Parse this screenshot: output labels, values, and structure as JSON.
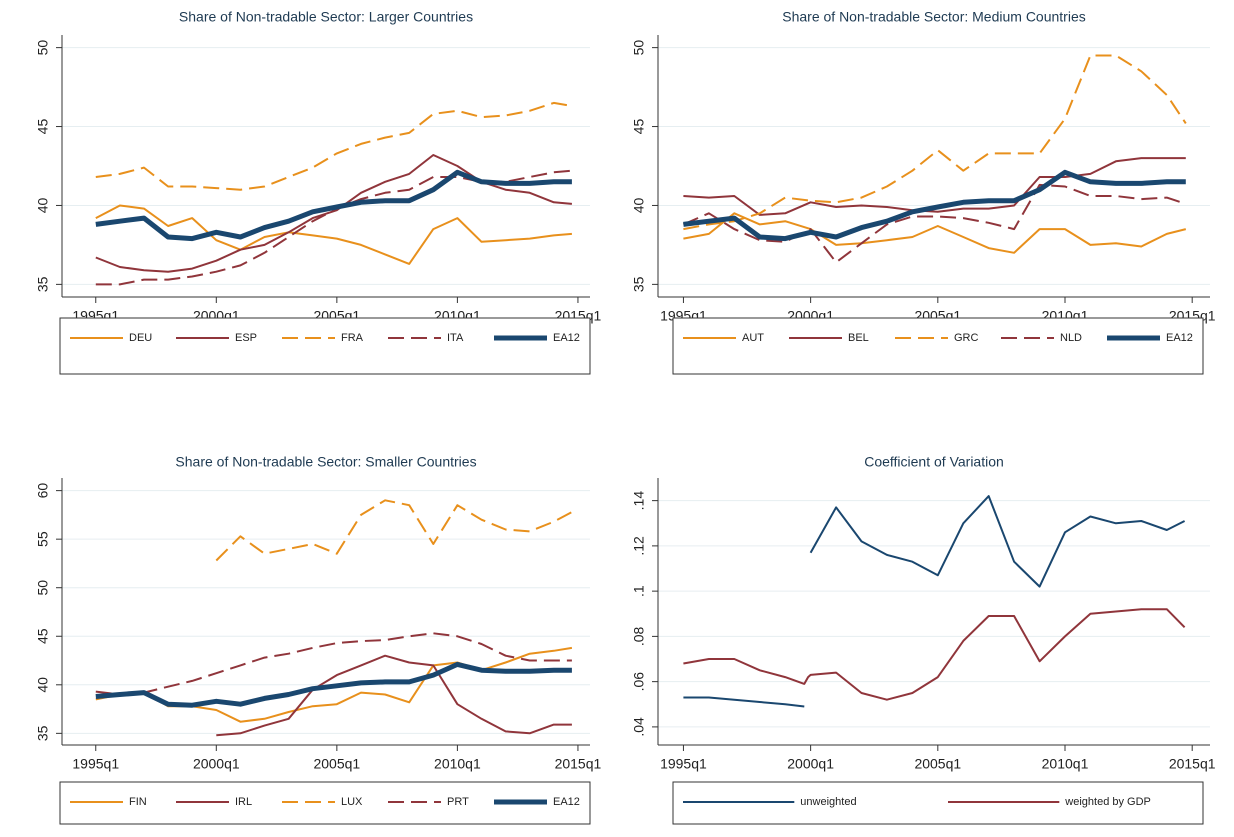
{
  "chart_data": [
    {
      "type": "line",
      "title": "Share of Non-tradable Sector: Larger Countries",
      "x": [
        1995,
        1996,
        1997,
        1998,
        1999,
        2000,
        2001,
        2002,
        2003,
        2004,
        2005,
        2006,
        2007,
        2008,
        2009,
        2010,
        2011,
        2012,
        2013,
        2014,
        2014.75
      ],
      "xlim": [
        1993.6,
        2015.5
      ],
      "xticks": [
        {
          "value": 1995,
          "label": "1995q1"
        },
        {
          "value": 2000,
          "label": "2000q1"
        },
        {
          "value": 2005,
          "label": "2005q1"
        },
        {
          "value": 2010,
          "label": "2010q1"
        },
        {
          "value": 2015,
          "label": "2015q1"
        }
      ],
      "ylim": [
        34.2,
        50.8
      ],
      "yticks": [
        35,
        40,
        45,
        50
      ],
      "grid": true,
      "series": [
        {
          "name": "DEU",
          "color": "#e8901c",
          "style": "solid",
          "width": 2,
          "values": [
            39.2,
            40,
            39.8,
            38.7,
            39.2,
            37.8,
            37.2,
            38,
            38.3,
            38.1,
            37.9,
            37.5,
            36.9,
            36.3,
            38.5,
            39.2,
            37.7,
            37.8,
            37.9,
            38.1,
            38.2
          ]
        },
        {
          "name": "ESP",
          "color": "#90353b",
          "style": "solid",
          "width": 2,
          "values": [
            36.7,
            36.1,
            35.9,
            35.8,
            36,
            36.5,
            37.2,
            37.5,
            38.3,
            39.2,
            39.7,
            40.8,
            41.5,
            42,
            43.2,
            42.5,
            41.5,
            41,
            40.8,
            40.2,
            40.1
          ]
        },
        {
          "name": "FRA",
          "color": "#e8901c",
          "style": "dash",
          "width": 2,
          "values": [
            41.8,
            42,
            42.4,
            41.2,
            41.2,
            41.1,
            41,
            41.2,
            41.8,
            42.4,
            43.3,
            43.9,
            44.3,
            44.6,
            45.8,
            46,
            45.6,
            45.7,
            46,
            46.5,
            46.3
          ]
        },
        {
          "name": "ITA",
          "color": "#90353b",
          "style": "dash",
          "width": 2,
          "values": [
            35,
            35,
            35.3,
            35.3,
            35.5,
            35.8,
            36.2,
            37,
            38,
            39,
            39.8,
            40.4,
            40.8,
            41,
            41.8,
            41.8,
            41.5,
            41.5,
            41.8,
            42.1,
            42.2
          ]
        },
        {
          "name": "EA12",
          "color": "#1a476f",
          "style": "solid",
          "width": 5,
          "values": [
            38.8,
            39,
            39.2,
            38,
            37.9,
            38.3,
            38,
            38.6,
            39,
            39.6,
            39.9,
            40.2,
            40.3,
            40.3,
            41,
            42.1,
            41.5,
            41.4,
            41.4,
            41.5,
            41.5
          ]
        }
      ]
    },
    {
      "type": "line",
      "title": "Share of Non-tradable Sector: Medium Countries",
      "x": [
        1995,
        1996,
        1997,
        1998,
        1999,
        2000,
        2001,
        2002,
        2003,
        2004,
        2005,
        2006,
        2007,
        2008,
        2009,
        2010,
        2011,
        2012,
        2013,
        2014,
        2014.75
      ],
      "xlim": [
        1994.0,
        2015.7
      ],
      "xticks": [
        {
          "value": 1995,
          "label": "1995q1"
        },
        {
          "value": 2000,
          "label": "2000q1"
        },
        {
          "value": 2005,
          "label": "2005q1"
        },
        {
          "value": 2010,
          "label": "2010q1"
        },
        {
          "value": 2015,
          "label": "2015q1"
        }
      ],
      "ylim": [
        34.2,
        50.8
      ],
      "yticks": [
        35,
        40,
        45,
        50
      ],
      "grid": true,
      "series": [
        {
          "name": "AUT",
          "color": "#e8901c",
          "style": "solid",
          "width": 2,
          "values": [
            37.9,
            38.2,
            39.5,
            38.8,
            39,
            38.5,
            37.5,
            37.6,
            37.8,
            38,
            38.7,
            38,
            37.3,
            37,
            38.5,
            38.5,
            37.5,
            37.6,
            37.4,
            38.2,
            38.5
          ]
        },
        {
          "name": "BEL",
          "color": "#90353b",
          "style": "solid",
          "width": 2,
          "values": [
            40.6,
            40.5,
            40.6,
            39.4,
            39.5,
            40.2,
            39.9,
            40,
            39.9,
            39.7,
            39.6,
            39.8,
            39.8,
            40,
            41.8,
            41.8,
            42,
            42.8,
            43,
            43,
            43
          ]
        },
        {
          "name": "GRC",
          "color": "#e8901c",
          "style": "dash",
          "width": 2,
          "values": [
            38.5,
            38.8,
            39,
            39.5,
            40.5,
            40.3,
            40.2,
            40.5,
            41.2,
            42.2,
            43.5,
            42.2,
            43.3,
            43.3,
            43.3,
            45.5,
            49.5,
            49.5,
            48.5,
            47,
            45.2
          ]
        },
        {
          "name": "NLD",
          "color": "#90353b",
          "style": "dash",
          "width": 2,
          "values": [
            38.8,
            39.5,
            38.5,
            37.8,
            37.7,
            38.5,
            36.4,
            37.6,
            38.8,
            39.3,
            39.3,
            39.2,
            38.9,
            38.5,
            41.3,
            41.2,
            40.6,
            40.6,
            40.4,
            40.5,
            40.1
          ]
        },
        {
          "name": "EA12",
          "color": "#1a476f",
          "style": "solid",
          "width": 5,
          "values": [
            38.8,
            39,
            39.2,
            38,
            37.9,
            38.3,
            38,
            38.6,
            39,
            39.6,
            39.9,
            40.2,
            40.3,
            40.3,
            41,
            42.1,
            41.5,
            41.4,
            41.4,
            41.5,
            41.5
          ]
        }
      ]
    },
    {
      "type": "line",
      "title": "Share of Non-tradable Sector: Smaller Countries",
      "x": [
        1995,
        1996,
        1997,
        1998,
        1999,
        2000,
        2001,
        2002,
        2003,
        2004,
        2005,
        2006,
        2007,
        2008,
        2009,
        2010,
        2011,
        2012,
        2013,
        2014,
        2014.75
      ],
      "xlim": [
        1993.6,
        2015.5
      ],
      "xticks": [
        {
          "value": 1995,
          "label": "1995q1"
        },
        {
          "value": 2000,
          "label": "2000q1"
        },
        {
          "value": 2005,
          "label": "2005q1"
        },
        {
          "value": 2010,
          "label": "2010q1"
        },
        {
          "value": 2015,
          "label": "2015q1"
        }
      ],
      "ylim": [
        33.8,
        61.3
      ],
      "yticks": [
        35,
        40,
        45,
        50,
        55,
        60
      ],
      "grid": true,
      "series": [
        {
          "name": "FIN",
          "color": "#e8901c",
          "style": "solid",
          "width": 2,
          "values": [
            38.5,
            39,
            39.2,
            37.8,
            37.8,
            37.4,
            36.2,
            36.5,
            37.2,
            37.8,
            38,
            39.2,
            39,
            38.2,
            42,
            42.3,
            41.5,
            42.3,
            43.2,
            43.5,
            43.8
          ]
        },
        {
          "name": "IRL",
          "color": "#90353b",
          "style": "solid",
          "width": 2,
          "values": [
            null,
            null,
            null,
            null,
            null,
            34.8,
            35,
            35.8,
            36.5,
            39.5,
            41,
            42,
            43,
            42.3,
            42,
            38,
            36.5,
            35.2,
            35,
            35.9,
            35.9
          ]
        },
        {
          "name": "LUX",
          "color": "#e8901c",
          "style": "dash",
          "width": 2,
          "values": [
            null,
            null,
            null,
            null,
            null,
            52.8,
            55.3,
            53.5,
            54,
            54.5,
            53.5,
            57.5,
            59,
            58.5,
            54.5,
            58.5,
            57,
            56,
            55.8,
            56.8,
            57.8
          ]
        },
        {
          "name": "PRT",
          "color": "#90353b",
          "style": "dash",
          "width": 2,
          "values": [
            39.3,
            39,
            39.2,
            39.8,
            40.4,
            41.2,
            42,
            42.8,
            43.2,
            43.8,
            44.3,
            44.5,
            44.6,
            45,
            45.3,
            45,
            44.2,
            43,
            42.5,
            42.5,
            42.5
          ]
        },
        {
          "name": "EA12",
          "color": "#1a476f",
          "style": "solid",
          "width": 5,
          "values": [
            38.8,
            39,
            39.2,
            38,
            37.9,
            38.3,
            38,
            38.6,
            39,
            39.6,
            39.9,
            40.2,
            40.3,
            40.3,
            41,
            42.1,
            41.5,
            41.4,
            41.4,
            41.5,
            41.5
          ]
        }
      ]
    },
    {
      "type": "line",
      "title": "Coefficient of Variation",
      "x": [
        1995,
        1996,
        1997,
        1998,
        1999,
        1999.75,
        1999.9,
        2000,
        2001,
        2002,
        2003,
        2004,
        2005,
        2006,
        2007,
        2008,
        2009,
        2010,
        2011,
        2012,
        2013,
        2014,
        2014.7
      ],
      "xlim": [
        1994.0,
        2015.7
      ],
      "xticks": [
        {
          "value": 1995,
          "label": "1995q1"
        },
        {
          "value": 2000,
          "label": "2000q1"
        },
        {
          "value": 2005,
          "label": "2005q1"
        },
        {
          "value": 2010,
          "label": "2010q1"
        },
        {
          "value": 2015,
          "label": "2015q1"
        }
      ],
      "ylim": [
        0.032,
        0.15
      ],
      "yticks": [
        {
          "value": 0.04,
          "label": ".04"
        },
        {
          "value": 0.06,
          "label": ".06"
        },
        {
          "value": 0.08,
          "label": ".08"
        },
        {
          "value": 0.1,
          "label": ".1"
        },
        {
          "value": 0.12,
          "label": ".12"
        },
        {
          "value": 0.14,
          "label": ".14"
        }
      ],
      "grid": true,
      "series": [
        {
          "name": "unweighted",
          "color": "#1a476f",
          "style": "solid",
          "width": 2,
          "values": [
            0.053,
            0.053,
            0.052,
            0.051,
            0.05,
            0.049,
            null,
            0.117,
            0.137,
            0.122,
            0.116,
            0.113,
            0.107,
            0.13,
            0.142,
            0.113,
            0.102,
            0.126,
            0.133,
            0.13,
            0.131,
            0.127,
            0.131
          ]
        },
        {
          "name": "weighted by GDP",
          "color": "#90353b",
          "style": "solid",
          "width": 2,
          "values": [
            0.068,
            0.07,
            0.07,
            0.065,
            0.062,
            0.059,
            0.062,
            0.063,
            0.064,
            0.055,
            0.052,
            0.055,
            0.062,
            0.078,
            0.089,
            0.089,
            0.069,
            0.08,
            0.09,
            0.091,
            0.092,
            0.092,
            0.084
          ]
        }
      ]
    }
  ]
}
